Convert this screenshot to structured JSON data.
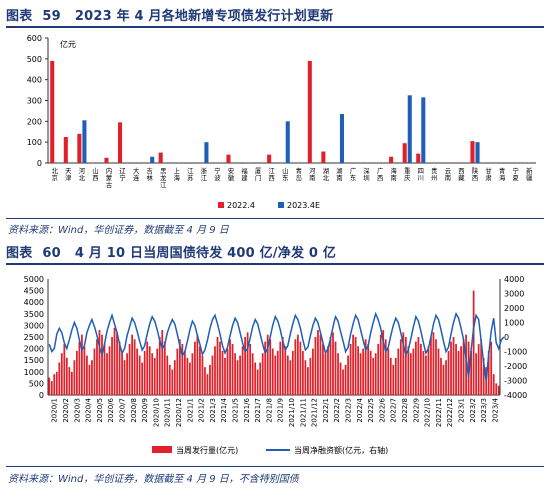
{
  "figures": [
    {
      "label": "图表",
      "number": "59",
      "title": "2023 年 4 月各地新增专项债发行计划更新",
      "source": "资料来源：Wind，华创证券，数据截至 4 月 9 日"
    },
    {
      "label": "图表",
      "number": "60",
      "title": "4 月 10 日当周国债待发 400 亿/净发 0 亿",
      "source": "资料来源：Wind，华创证券，数据截至 4 月 9 日，不含特别国债"
    }
  ],
  "colors": {
    "red": "#e0202a",
    "blue": "#1f5fb5",
    "title": "#1f3a75"
  },
  "chart_data": [
    {
      "type": "bar",
      "unit": "亿元",
      "ylim": [
        0,
        600
      ],
      "yticks": [
        0,
        100,
        200,
        300,
        400,
        500,
        600
      ],
      "legend_position": "bottom",
      "categories": [
        "北京",
        "天津",
        "河北",
        "山西",
        "内蒙古",
        "辽宁",
        "大连",
        "吉林",
        "黑龙江",
        "上海",
        "江苏",
        "浙江",
        "宁波",
        "安徽",
        "福建",
        "厦门",
        "江西",
        "山东",
        "青岛",
        "河南",
        "湖北",
        "湖南",
        "广东",
        "深圳",
        "广西",
        "海南",
        "重庆",
        "四川",
        "贵州",
        "云南",
        "西藏",
        "陕西",
        "甘肃",
        "青海",
        "宁夏",
        "新疆"
      ],
      "series": [
        {
          "name": "2022.4",
          "color": "#e0202a",
          "values": [
            490,
            125,
            140,
            0,
            25,
            195,
            0,
            0,
            50,
            0,
            0,
            0,
            0,
            40,
            0,
            0,
            40,
            0,
            0,
            490,
            55,
            0,
            0,
            0,
            0,
            30,
            95,
            45,
            0,
            0,
            3,
            105,
            0,
            0,
            0,
            0
          ]
        },
        {
          "name": "2023.4E",
          "color": "#1f5fb5",
          "values": [
            0,
            0,
            205,
            0,
            0,
            0,
            0,
            30,
            0,
            0,
            0,
            100,
            0,
            0,
            0,
            0,
            0,
            200,
            0,
            0,
            0,
            235,
            0,
            0,
            0,
            0,
            325,
            315,
            0,
            0,
            0,
            100,
            0,
            0,
            0,
            0
          ]
        }
      ]
    },
    {
      "type": "bar+line",
      "ylim_left": [
        0,
        5000
      ],
      "yticks_left": [
        0,
        500,
        1000,
        1500,
        2000,
        2500,
        3000,
        3500,
        4000,
        4500,
        5000
      ],
      "ylim_right": [
        -4000,
        4000
      ],
      "yticks_right": [
        -4000,
        -3000,
        -2000,
        -1000,
        0,
        1000,
        2000,
        3000,
        4000
      ],
      "legend_position": "bottom",
      "x_tick_labels": [
        "2020/1",
        "2020/2",
        "2020/3",
        "2020/4",
        "2020/5",
        "2020/6",
        "2020/7",
        "2020/8",
        "2020/9",
        "2020/10",
        "2020/11",
        "2020/12",
        "2021/1",
        "2021/2",
        "2021/3",
        "2021/4",
        "2021/5",
        "2021/6",
        "2021/7",
        "2021/8",
        "2021/9",
        "2021/10",
        "2021/11",
        "2021/12",
        "2022/1",
        "2022/2",
        "2022/3",
        "2022/4",
        "2022/5",
        "2022/6",
        "2022/7",
        "2022/8",
        "2022/9",
        "2022/10",
        "2022/11",
        "2022/12",
        "2023/1",
        "2023/2",
        "2023/3",
        "2023/4"
      ],
      "series": [
        {
          "name": "当周发行量(亿元)",
          "axis": "left",
          "style": "bar",
          "color": "#e0202a",
          "values": [
            750,
            600,
            900,
            1000,
            1400,
            1800,
            2200,
            1600,
            1200,
            1000,
            1500,
            1900,
            2300,
            2600,
            2100,
            1700,
            1300,
            1500,
            2000,
            2400,
            2800,
            2600,
            2200,
            1800,
            2100,
            2500,
            2900,
            2700,
            2300,
            1900,
            1500,
            1800,
            2200,
            2600,
            2400,
            2000,
            1700,
            1400,
            1900,
            2300,
            2100,
            1800,
            1600,
            2000,
            2500,
            2800,
            2300,
            1700,
            1300,
            1100,
            1500,
            2000,
            2400,
            2200,
            1900,
            1600,
            1400,
            1800,
            2300,
            2600,
            2100,
            1700,
            1200,
            900,
            1300,
            1700,
            2100,
            2500,
            2300,
            1900,
            1600,
            2000,
            2400,
            2200,
            1800,
            1500,
            1700,
            2100,
            2500,
            2700,
            2200,
            1800,
            1400,
            1100,
            1400,
            1800,
            2300,
            2600,
            2400,
            2000,
            1700,
            1900,
            2300,
            2500,
            2100,
            1700,
            1500,
            1900,
            2400,
            2600,
            2300,
            1900,
            1500,
            1200,
            1600,
            2000,
            2500,
            2800,
            2600,
            2200,
            1800,
            2100,
            2500,
            2700,
            2300,
            1800,
            1400,
            1100,
            1300,
            1700,
            2200,
            2600,
            2500,
            2100,
            1800,
            2000,
            2400,
            2200,
            1900,
            1600,
            1800,
            2200,
            2600,
            2800,
            2400,
            2000,
            1600,
            1300,
            1600,
            2000,
            2400,
            2700,
            2500,
            2100,
            1800,
            2000,
            2300,
            2500,
            2200,
            1900,
            1700,
            2100,
            2500,
            2700,
            2400,
            2000,
            1600,
            1300,
            1500,
            1900,
            2300,
            2500,
            2200,
            1900,
            2100,
            2400,
            2600,
            2300,
            1900,
            4500,
            1800,
            2200,
            2400,
            1600,
            1200,
            1900,
            2300,
            900,
            500,
            400
          ]
        },
        {
          "name": "当周净融资额(亿元，右轴)",
          "axis": "right",
          "style": "line",
          "color": "#1f5fb5",
          "values": [
            -500,
            -1000,
            -800,
            200,
            600,
            300,
            -400,
            -800,
            -200,
            500,
            1000,
            600,
            -200,
            -900,
            -600,
            300,
            800,
            1200,
            700,
            100,
            -700,
            -1200,
            -500,
            400,
            1000,
            1500,
            900,
            300,
            -500,
            -1100,
            -800,
            100,
            700,
            1300,
            1000,
            400,
            -300,
            -900,
            -600,
            200,
            900,
            1400,
            1100,
            500,
            -200,
            -800,
            -500,
            300,
            800,
            1200,
            900,
            200,
            -600,
            -1300,
            -1000,
            -300,
            500,
            1100,
            800,
            100,
            -500,
            -1200,
            -900,
            -200,
            600,
            1200,
            1500,
            900,
            200,
            -600,
            -1100,
            -700,
            100,
            800,
            1300,
            1000,
            300,
            -400,
            -1000,
            -800,
            -100,
            700,
            1200,
            900,
            200,
            -500,
            -1100,
            -800,
            0,
            800,
            1400,
            1100,
            500,
            -300,
            -900,
            -600,
            200,
            900,
            1500,
            1200,
            600,
            -200,
            -900,
            -700,
            100,
            800,
            1300,
            1000,
            300,
            -400,
            -1100,
            -800,
            -100,
            700,
            1400,
            1100,
            400,
            -300,
            -1000,
            -700,
            200,
            900,
            1500,
            1200,
            500,
            -200,
            -900,
            -600,
            300,
            1000,
            1600,
            1200,
            600,
            -300,
            -1000,
            -700,
            100,
            800,
            1300,
            1000,
            300,
            -500,
            -1200,
            -900,
            -100,
            700,
            1400,
            1100,
            400,
            -400,
            -1100,
            -800,
            0,
            900,
            1500,
            1200,
            500,
            -300,
            -1000,
            -700,
            200,
            1000,
            1600,
            1300,
            600,
            -200,
            -1500,
            -2800,
            -900,
            600,
            1500,
            1200,
            -300,
            -1800,
            -3000,
            -1200,
            400,
            1300,
            -400,
            -800,
            -200,
            0
          ]
        }
      ]
    }
  ]
}
